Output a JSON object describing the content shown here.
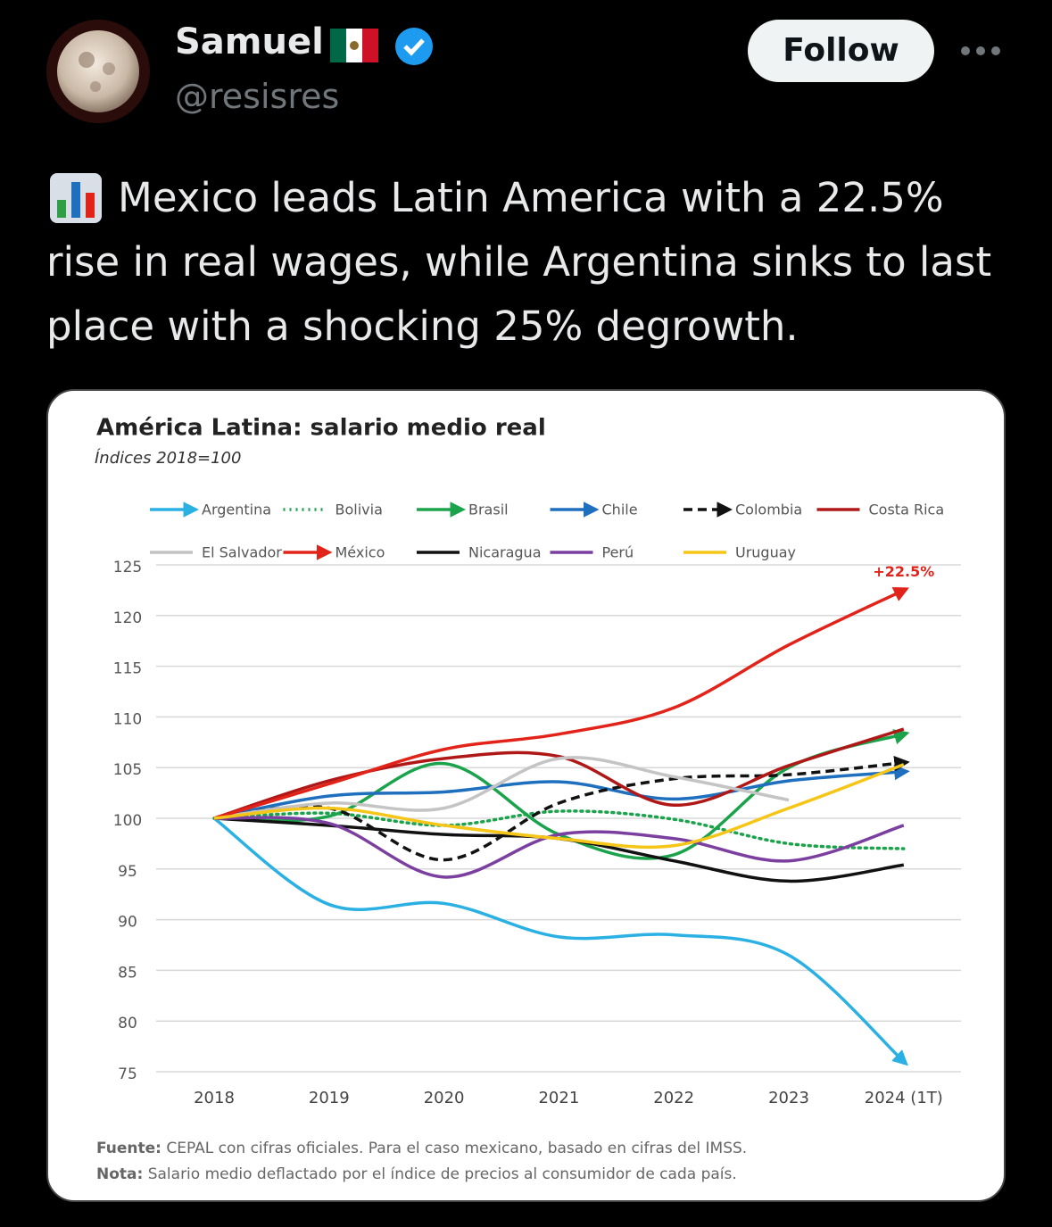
{
  "post": {
    "name": "Samuel",
    "handle": "@resisres",
    "follow": "Follow",
    "text": "Mexico leads Latin America with a 22.5% rise in real wages, while Argentina sinks to last place with a shocking 25% degrowth."
  },
  "chart_data": {
    "type": "line",
    "title": "América Latina: salario medio real",
    "subtitle": "Índices 2018=100",
    "categories": [
      "2018",
      "2019",
      "2020",
      "2021",
      "2022",
      "2023",
      "2024 (1T)"
    ],
    "ylim": [
      75,
      125
    ],
    "yticks": [
      75,
      80,
      85,
      90,
      95,
      100,
      105,
      110,
      115,
      120,
      125
    ],
    "grid": true,
    "annotation": "+22.5%",
    "source_label": "Fuente:",
    "source_text": "CEPAL con cifras oficiales. Para el caso mexicano, basado en cifras del IMSS.",
    "note_label": "Nota:",
    "note_text": "Salario medio deflactado por el índice de precios al consumidor de cada país.",
    "series": [
      {
        "name": "Argentina",
        "color": "#2bb0e4",
        "style": "solid",
        "arrow": true,
        "values": [
          100,
          91.5,
          91.6,
          88.3,
          88.5,
          86.5,
          76
        ]
      },
      {
        "name": "Bolivia",
        "color": "#1aa34a",
        "style": "dotted",
        "arrow": false,
        "values": [
          100,
          100.5,
          99.3,
          100.7,
          99.9,
          97.5,
          97
        ]
      },
      {
        "name": "Brasil",
        "color": "#1aa34a",
        "style": "solid",
        "arrow": true,
        "values": [
          100,
          100.2,
          105.4,
          98.4,
          96.4,
          105,
          108.3
        ]
      },
      {
        "name": "Chile",
        "color": "#1f6fbf",
        "style": "solid",
        "arrow": true,
        "values": [
          100,
          102.2,
          102.6,
          103.6,
          101.9,
          103.7,
          104.6
        ]
      },
      {
        "name": "Colombia",
        "color": "#111111",
        "style": "dashed",
        "arrow": true,
        "values": [
          100,
          101,
          95.9,
          101.5,
          103.9,
          104.3,
          105.5
        ]
      },
      {
        "name": "Costa Rica",
        "color": "#b01818",
        "style": "solid",
        "arrow": false,
        "values": [
          100,
          103.7,
          105.9,
          106.1,
          101.3,
          105.2,
          108.8
        ]
      },
      {
        "name": "El Salvador",
        "color": "#c4c4c4",
        "style": "solid",
        "arrow": false,
        "values": [
          100,
          101.5,
          101,
          105.9,
          104.1,
          101.8,
          null
        ]
      },
      {
        "name": "México",
        "color": "#e2231a",
        "style": "solid",
        "arrow": true,
        "values": [
          100,
          103.4,
          106.8,
          108.3,
          110.9,
          117.1,
          122.5
        ]
      },
      {
        "name": "Nicaragua",
        "color": "#111111",
        "style": "solid",
        "arrow": false,
        "values": [
          100,
          99.3,
          98.4,
          98,
          95.8,
          93.8,
          95.4
        ]
      },
      {
        "name": "Perú",
        "color": "#7b3fa0",
        "style": "solid",
        "arrow": false,
        "values": [
          100,
          99.5,
          94.2,
          98.4,
          98,
          95.8,
          99.3
        ]
      },
      {
        "name": "Uruguay",
        "color": "#f5c518",
        "style": "solid",
        "arrow": false,
        "values": [
          100,
          101,
          99.3,
          98,
          97.3,
          101,
          105.3
        ]
      }
    ]
  }
}
